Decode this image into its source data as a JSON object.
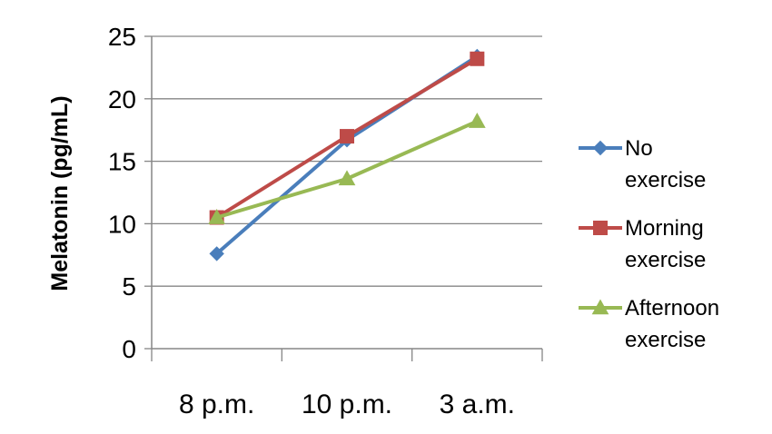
{
  "chart_data": {
    "type": "line",
    "categories": [
      "8 p.m.",
      "10 p.m.",
      "3 a.m."
    ],
    "ylabel": "Melatonin (pg/mL)",
    "ylim": [
      0,
      25
    ],
    "yticks": [
      0,
      5,
      10,
      15,
      20,
      25
    ],
    "grid": true,
    "legend_position": "right",
    "series": [
      {
        "name": "No exercise",
        "name_lines": [
          "No",
          "exercise"
        ],
        "color": "#4a7ebb",
        "marker": "diamond",
        "values": [
          7.6,
          16.7,
          23.4
        ]
      },
      {
        "name": "Morning exercise",
        "name_lines": [
          "Morning",
          "exercise"
        ],
        "color": "#be4b48",
        "marker": "square",
        "values": [
          10.5,
          17.0,
          23.2
        ]
      },
      {
        "name": "Afternoon exercise",
        "name_lines": [
          "Afternoon",
          "exercise"
        ],
        "color": "#98b954",
        "marker": "triangle",
        "values": [
          10.5,
          13.6,
          18.2
        ]
      }
    ]
  }
}
